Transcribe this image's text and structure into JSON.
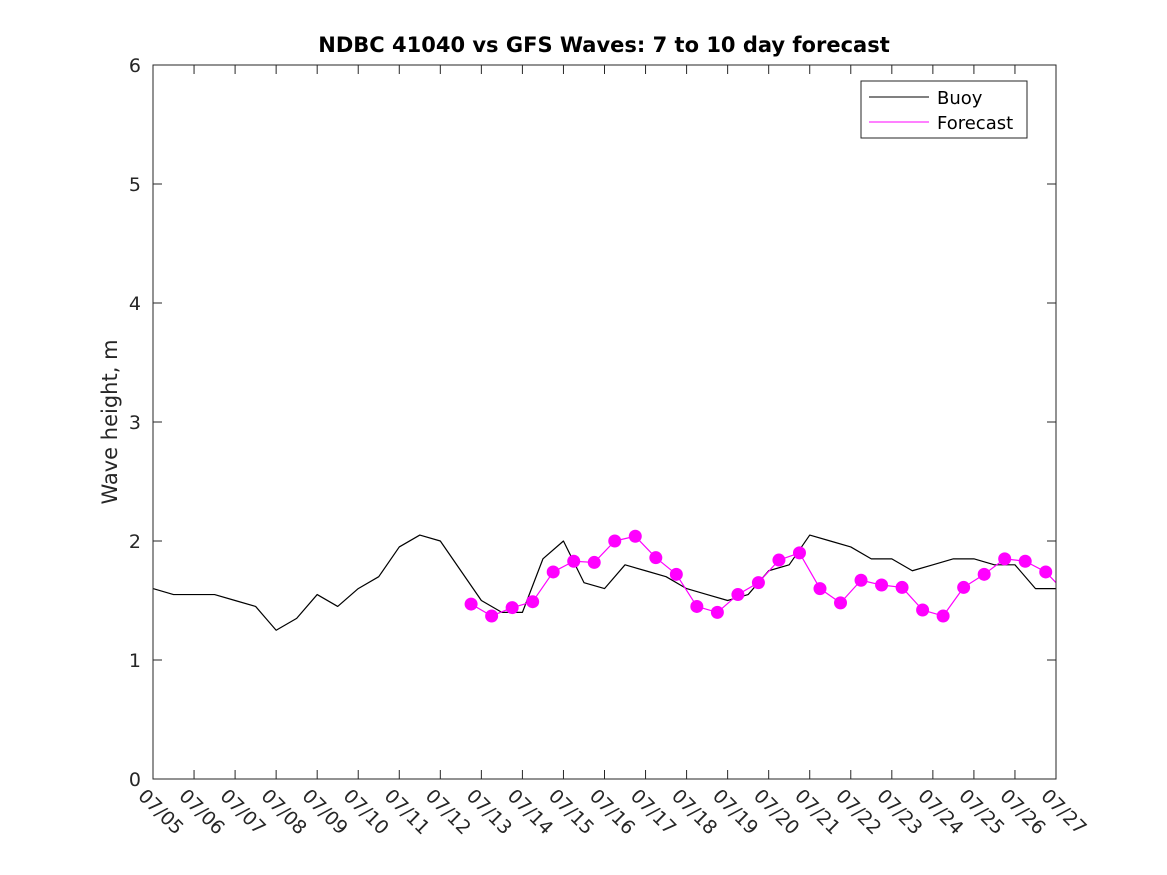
{
  "chart_data": {
    "type": "line",
    "title": "NDBC 41040 vs GFS Waves: 7 to 10 day forecast",
    "xlabel": "",
    "ylabel": "Wave height, m",
    "ylim": [
      0,
      6
    ],
    "yticks": [
      0,
      1,
      2,
      3,
      4,
      5,
      6
    ],
    "xlim": [
      "07/05",
      "07/27"
    ],
    "xticks": [
      "07/05",
      "07/06",
      "07/07",
      "07/08",
      "07/09",
      "07/10",
      "07/11",
      "07/12",
      "07/13",
      "07/14",
      "07/15",
      "07/16",
      "07/17",
      "07/18",
      "07/19",
      "07/20",
      "07/21",
      "07/22",
      "07/23",
      "07/24",
      "07/25",
      "07/26",
      "07/27"
    ],
    "grid": false,
    "legend": {
      "placement": "top-right",
      "entries": [
        "Buoy",
        "Forecast"
      ]
    },
    "colors": {
      "buoy": "#000000",
      "forecast": "#ff00ff"
    },
    "series": [
      {
        "name": "Buoy",
        "style": "line",
        "x": [
          "07/05",
          "07/05 12:00",
          "07/06",
          "07/06 12:00",
          "07/07",
          "07/07 12:00",
          "07/07 18:00",
          "07/08",
          "07/08 12:00",
          "07/09",
          "07/09 12:00",
          "07/10",
          "07/10 12:00",
          "07/11",
          "07/11 12:00",
          "07/12",
          "07/12 12:00",
          "07/13",
          "07/13 12:00",
          "07/14",
          "07/14 12:00",
          "07/15",
          "07/15 12:00",
          "07/16",
          "07/16 12:00",
          "07/17",
          "07/17 12:00",
          "07/18",
          "07/18 12:00",
          "07/19",
          "07/19 12:00",
          "07/20",
          "07/20 12:00",
          "07/21",
          "07/21 12:00",
          "07/22",
          "07/22 12:00",
          "07/23",
          "07/23 12:00",
          "07/24",
          "07/24 12:00",
          "07/25",
          "07/25 12:00",
          "07/26",
          "07/26 12:00",
          "07/27"
        ],
        "y": [
          1.6,
          1.55,
          1.55,
          1.55,
          1.5,
          1.45,
          1.35,
          1.25,
          1.35,
          1.55,
          1.45,
          1.6,
          1.7,
          1.95,
          2.05,
          2.0,
          1.75,
          1.5,
          1.4,
          1.4,
          1.85,
          2.0,
          1.65,
          1.6,
          1.8,
          1.75,
          1.7,
          1.6,
          1.55,
          1.5,
          1.55,
          1.75,
          1.8,
          2.05,
          2.0,
          1.95,
          1.85,
          1.85,
          1.75,
          1.8,
          1.85,
          1.85,
          1.8,
          1.8,
          1.6,
          1.6
        ]
      },
      {
        "name": "Forecast",
        "style": "line",
        "x": [
          "07/12 18:00",
          "07/13 06:00",
          "07/13 18:00",
          "07/14 06:00",
          "07/14 18:00",
          "07/15 06:00",
          "07/15 18:00",
          "07/16 06:00",
          "07/16 18:00",
          "07/17 06:00",
          "07/17 18:00",
          "07/18 06:00",
          "07/18 18:00",
          "07/19 06:00",
          "07/19 18:00",
          "07/20 06:00",
          "07/20 18:00",
          "07/21 06:00",
          "07/21 18:00",
          "07/22 06:00",
          "07/22 18:00",
          "07/23 06:00",
          "07/23 18:00",
          "07/24 06:00",
          "07/24 18:00",
          "07/25 06:00",
          "07/25 18:00",
          "07/26 06:00",
          "07/26 18:00",
          "07/27"
        ],
        "y": [
          1.47,
          1.37,
          1.44,
          1.49,
          1.74,
          1.83,
          1.82,
          2.0,
          2.04,
          1.86,
          1.72,
          1.45,
          1.4,
          1.55,
          1.65,
          1.84,
          1.9,
          1.6,
          1.48,
          1.67,
          1.63,
          1.61,
          1.42,
          1.37,
          1.61,
          1.72,
          1.85,
          1.83,
          1.74,
          1.65
        ]
      }
    ],
    "forecast_markers": {
      "x": [
        "07/12 18:00",
        "07/13 06:00",
        "07/13 18:00",
        "07/14 06:00",
        "07/14 18:00",
        "07/15 06:00",
        "07/15 18:00",
        "07/16 06:00",
        "07/16 18:00",
        "07/17 06:00",
        "07/17 18:00",
        "07/18 06:00",
        "07/18 18:00",
        "07/19 06:00",
        "07/19 18:00",
        "07/20 06:00",
        "07/20 18:00",
        "07/21 06:00",
        "07/21 18:00",
        "07/22 06:00",
        "07/22 18:00",
        "07/23 06:00",
        "07/23 18:00",
        "07/24 06:00",
        "07/24 18:00",
        "07/25 06:00",
        "07/25 18:00",
        "07/26 06:00",
        "07/26 18:00"
      ],
      "y": [
        1.47,
        1.37,
        1.44,
        1.49,
        1.74,
        1.83,
        1.82,
        2.0,
        2.04,
        1.86,
        1.72,
        1.45,
        1.4,
        1.55,
        1.65,
        1.84,
        1.9,
        1.6,
        1.48,
        1.67,
        1.63,
        1.61,
        1.42,
        1.37,
        1.61,
        1.72,
        1.85,
        1.83,
        1.74
      ]
    }
  }
}
